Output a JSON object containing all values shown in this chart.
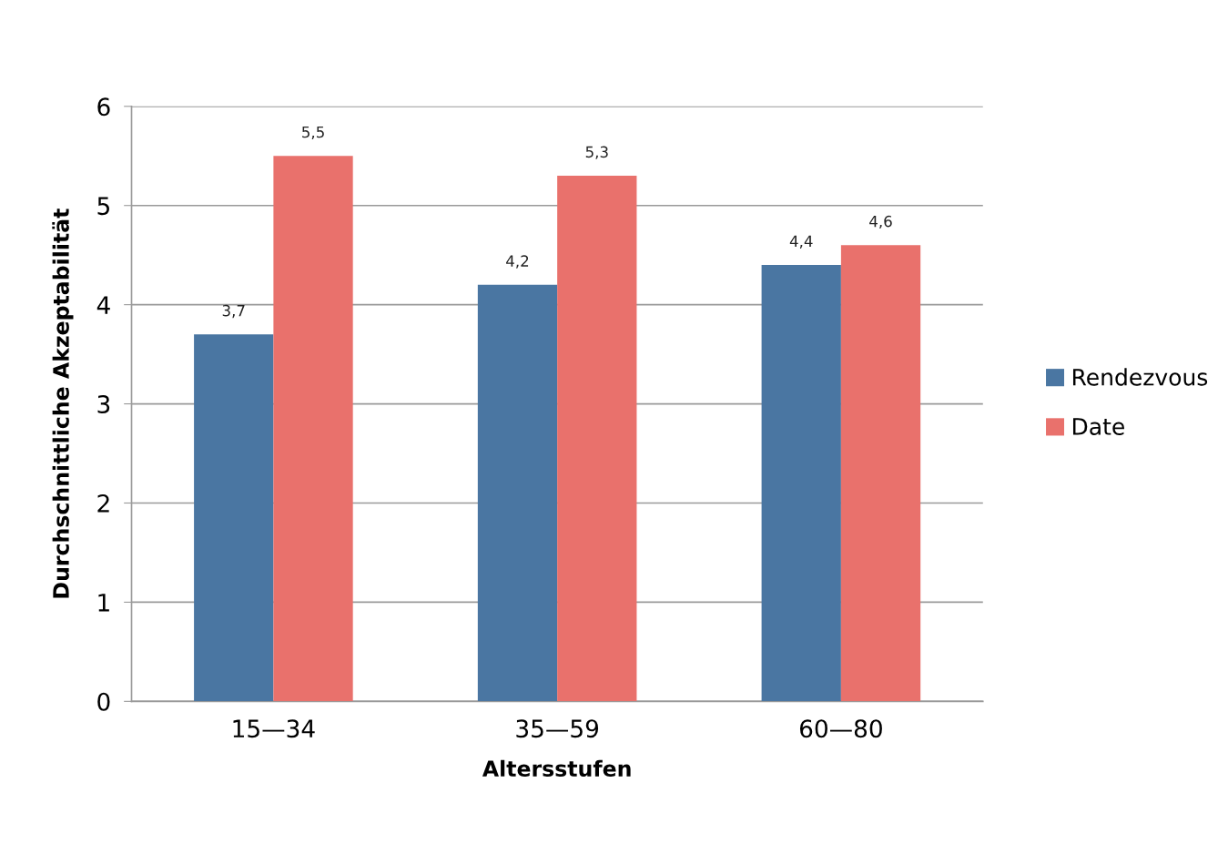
{
  "chart_data": {
    "type": "bar",
    "xlabel": "Altersstufen",
    "ylabel": "Durchschnittliche Akzeptabilität",
    "categories": [
      "15—34",
      "35—59",
      "60—80"
    ],
    "series": [
      {
        "name": "Rendezvous",
        "color": "#4a76a2",
        "values": [
          3.7,
          4.2,
          4.4
        ],
        "value_labels": [
          "3,7",
          "4,2",
          "4,4"
        ]
      },
      {
        "name": "Date",
        "color": "#e9716c",
        "values": [
          5.5,
          5.3,
          4.6
        ],
        "value_labels": [
          "5,5",
          "5,3",
          "4,6"
        ]
      }
    ],
    "ylim": [
      0,
      6
    ],
    "yticks": [
      0,
      1,
      2,
      3,
      4,
      5,
      6
    ],
    "grid": "y",
    "legend": "right"
  }
}
